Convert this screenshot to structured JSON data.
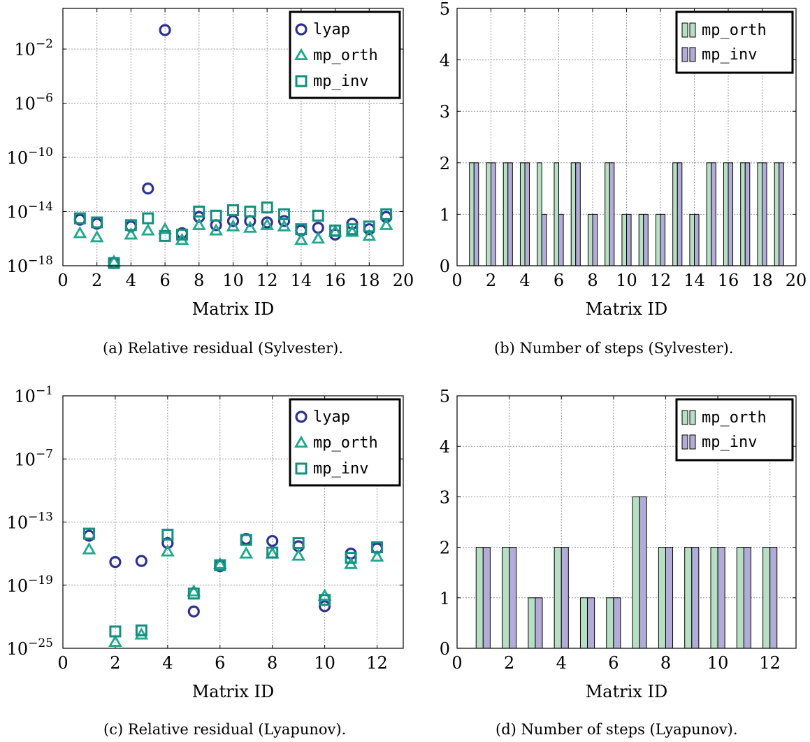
{
  "colors": {
    "lyap": "#2e3192",
    "mp_orth": "#1ea88c",
    "mp_inv": "#138f7e",
    "bar_orth": "#b7dfc3",
    "bar_inv": "#b3acd8",
    "grid": "#9a9a9a"
  },
  "captions": {
    "a": "(a) Relative residual (Sylvester).",
    "b": "(b) Number of steps (Sylvester).",
    "c": "(c) Relative residual (Lyapunov).",
    "d": "(d) Number of steps (Lyapunov)."
  },
  "chart_data": [
    {
      "type": "scatter",
      "scale_y": "log",
      "xlabel": "Matrix ID",
      "ylabel": "",
      "xlim": [
        0,
        20
      ],
      "ylim_exp": [
        -18,
        1
      ],
      "x_ticks": [
        0,
        2,
        4,
        6,
        8,
        10,
        12,
        14,
        16,
        18,
        20
      ],
      "y_tick_exps": [
        -18,
        -14,
        -10,
        -6,
        -2
      ],
      "legend": [
        "lyap",
        "mp_orth",
        "mp_inv"
      ],
      "legend_position": "top-right",
      "grid": true,
      "x": [
        1,
        2,
        3,
        4,
        5,
        6,
        7,
        8,
        9,
        10,
        11,
        12,
        13,
        14,
        15,
        16,
        17,
        18,
        19
      ],
      "series": [
        {
          "name": "lyap",
          "marker": "circle",
          "log10_values": [
            -14.6,
            -14.9,
            -17.8,
            -15.1,
            -12.3,
            -0.6,
            -15.6,
            -14.4,
            -15.0,
            -14.7,
            -14.7,
            -14.8,
            -14.7,
            -15.4,
            -15.2,
            -15.7,
            -14.9,
            -15.3,
            -14.4
          ]
        },
        {
          "name": "mp_orth",
          "marker": "triangle",
          "log10_values": [
            -15.6,
            -15.9,
            -17.7,
            -15.7,
            -15.4,
            -15.3,
            -16.1,
            -15.0,
            -15.4,
            -15.1,
            -15.2,
            -15.0,
            -15.1,
            -16.1,
            -16.0,
            -15.5,
            -15.5,
            -15.8,
            -15.0
          ]
        },
        {
          "name": "mp_inv",
          "marker": "square",
          "log10_values": [
            -14.5,
            -14.8,
            -17.8,
            -15.0,
            -14.5,
            -15.8,
            -15.7,
            -14.0,
            -14.3,
            -13.9,
            -14.0,
            -13.7,
            -14.2,
            -15.3,
            -14.3,
            -15.4,
            -15.3,
            -15.1,
            -14.2
          ]
        }
      ]
    },
    {
      "type": "bar",
      "xlabel": "Matrix ID",
      "ylabel": "",
      "xlim": [
        0,
        20
      ],
      "ylim": [
        0,
        5
      ],
      "x_ticks": [
        0,
        2,
        4,
        6,
        8,
        10,
        12,
        14,
        16,
        18,
        20
      ],
      "y_ticks": [
        0,
        1,
        2,
        3,
        4,
        5
      ],
      "legend_position": "top-right",
      "grid": true,
      "categories": [
        1,
        2,
        3,
        4,
        5,
        6,
        7,
        8,
        9,
        10,
        11,
        12,
        13,
        14,
        15,
        16,
        17,
        18,
        19
      ],
      "series": [
        {
          "name": "mp_orth",
          "values": [
            2,
            2,
            2,
            2,
            2,
            2,
            2,
            1,
            2,
            1,
            1,
            1,
            2,
            1,
            2,
            2,
            2,
            2,
            2
          ]
        },
        {
          "name": "mp_inv",
          "values": [
            2,
            2,
            2,
            2,
            1,
            1,
            2,
            1,
            2,
            1,
            1,
            1,
            2,
            1,
            2,
            2,
            2,
            2,
            2
          ]
        }
      ]
    },
    {
      "type": "scatter",
      "scale_y": "log",
      "xlabel": "Matrix ID",
      "ylabel": "",
      "xlim": [
        0,
        13
      ],
      "ylim_exp": [
        -25,
        -1
      ],
      "x_ticks": [
        0,
        2,
        4,
        6,
        8,
        10,
        12
      ],
      "y_tick_exps": [
        -25,
        -19,
        -13,
        -7,
        -1
      ],
      "legend": [
        "lyap",
        "mp_orth",
        "mp_inv"
      ],
      "legend_position": "top-right",
      "grid": true,
      "x": [
        1,
        2,
        3,
        4,
        5,
        6,
        7,
        8,
        9,
        10,
        11,
        12
      ],
      "series": [
        {
          "name": "lyap",
          "marker": "circle",
          "log10_values": [
            -14.3,
            -16.8,
            -16.7,
            -15.0,
            -21.5,
            -17.2,
            -14.6,
            -14.8,
            -15.3,
            -21.0,
            -16.0,
            -15.5
          ]
        },
        {
          "name": "mp_orth",
          "marker": "triangle",
          "log10_values": [
            -15.6,
            -24.4,
            -23.7,
            -15.8,
            -19.6,
            -17.0,
            -16.0,
            -16.0,
            -16.2,
            -20.0,
            -17.0,
            -16.3
          ]
        },
        {
          "name": "mp_inv",
          "marker": "square",
          "log10_values": [
            -14.1,
            -23.4,
            -23.3,
            -14.2,
            -19.8,
            -17.1,
            -14.7,
            -15.9,
            -15.0,
            -20.4,
            -16.4,
            -15.4
          ]
        }
      ]
    },
    {
      "type": "bar",
      "xlabel": "Matrix ID",
      "ylabel": "",
      "xlim": [
        0,
        13
      ],
      "ylim": [
        0,
        5
      ],
      "x_ticks": [
        0,
        2,
        4,
        6,
        8,
        10,
        12
      ],
      "y_ticks": [
        0,
        1,
        2,
        3,
        4,
        5
      ],
      "legend_position": "top-right",
      "grid": true,
      "categories": [
        1,
        2,
        3,
        4,
        5,
        6,
        7,
        8,
        9,
        10,
        11,
        12
      ],
      "series": [
        {
          "name": "mp_orth",
          "values": [
            2,
            2,
            1,
            2,
            1,
            1,
            3,
            2,
            2,
            2,
            2,
            2
          ]
        },
        {
          "name": "mp_inv",
          "values": [
            2,
            2,
            1,
            2,
            1,
            1,
            3,
            2,
            2,
            2,
            2,
            2
          ]
        }
      ]
    }
  ]
}
